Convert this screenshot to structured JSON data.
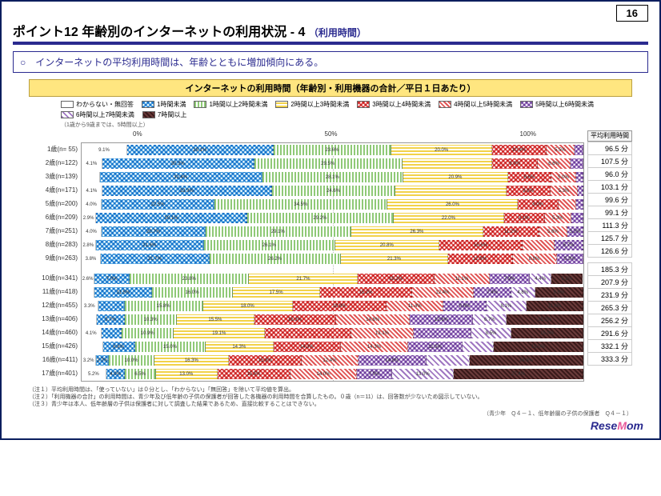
{
  "page_number": "16",
  "title_main": "ポイント12 年齢別のインターネットの利用状況 - 4",
  "title_sub": "（利用時間）",
  "summary": "○　インターネットの平均利用時間は、年齢とともに増加傾向にある。",
  "chart_title": "インターネットの利用時間（年齢別・利用機器の合計／平日１日あたり）",
  "avg_header": "平均利用時間",
  "legend_note": "（1歳から9歳までは、5時間以上）",
  "axis": {
    "t0": "0%",
    "t50": "50%",
    "t100": "100%"
  },
  "categories": [
    {
      "key": "blank",
      "label": "わからない・無回答",
      "class": "p-blank"
    },
    {
      "key": "lt1",
      "label": "1時間未満",
      "class": "p-blue-x"
    },
    {
      "key": "h1_2",
      "label": "1時間以上2時間未満",
      "class": "p-green-v"
    },
    {
      "key": "h2_3",
      "label": "2時間以上3時間未満",
      "class": "p-yellow-h"
    },
    {
      "key": "h3_4",
      "label": "3時間以上4時間未満",
      "class": "p-red-x"
    },
    {
      "key": "h4_5",
      "label": "4時間以上5時間未満",
      "class": "p-red-d"
    },
    {
      "key": "h5_6",
      "label": "5時間以上6時間未満",
      "class": "p-purple-x"
    },
    {
      "key": "h6_7",
      "label": "6時間以上7時間未満",
      "class": "p-purple-d"
    },
    {
      "key": "h7p",
      "label": "7時間以上",
      "class": "p-dark"
    }
  ],
  "rows": [
    {
      "label": "1歳(n= 55)",
      "avg": "96.5 分",
      "seg": [
        {
          "k": "blank",
          "v": 9.1,
          "t": "9.1%"
        },
        {
          "k": "lt1",
          "v": 29.1,
          "t": "29.1%"
        },
        {
          "k": "h1_2",
          "v": 23.6,
          "t": "23.6%"
        },
        {
          "k": "h2_3",
          "v": 20.0,
          "t": "20.0%"
        },
        {
          "k": "h3_4",
          "v": 10.9,
          "t": "10.9%"
        },
        {
          "k": "h4_5",
          "v": 5.5,
          "t": "5.5%"
        },
        {
          "k": "h5_6",
          "v": 1.8,
          "t": ""
        }
      ]
    },
    {
      "label": "2歳(n=122)",
      "avg": "107.5 分",
      "seg": [
        {
          "k": "blank",
          "v": 4.1,
          "t": "4.1%"
        },
        {
          "k": "lt1",
          "v": 30.3,
          "t": "30.3%"
        },
        {
          "k": "h1_2",
          "v": 29.5,
          "t": "29.5%"
        },
        {
          "k": "h2_3",
          "v": 18.0,
          "t": ""
        },
        {
          "k": "h3_4",
          "v": 9.0,
          "t": "9.0%"
        },
        {
          "k": "h4_5",
          "v": 6.6,
          "t": "6.6%"
        },
        {
          "k": "h5_6",
          "v": 2.5,
          "t": ""
        }
      ]
    },
    {
      "label": "3歳(n=139)",
      "avg": "96.0 分",
      "seg": [
        {
          "k": "blank",
          "v": 3.6,
          "t": ""
        },
        {
          "k": "lt1",
          "v": 32.4,
          "t": "32.4%"
        },
        {
          "k": "h1_2",
          "v": 28.1,
          "t": "28.1%"
        },
        {
          "k": "h2_3",
          "v": 20.9,
          "t": "20.9%"
        },
        {
          "k": "h3_4",
          "v": 8.6,
          "t": "8.6%"
        },
        {
          "k": "h4_5",
          "v": 5.0,
          "t": "5.0%"
        },
        {
          "k": "h5_6",
          "v": 1.4,
          "t": ""
        }
      ]
    },
    {
      "label": "4歳(n=171)",
      "avg": "103.1 分",
      "seg": [
        {
          "k": "blank",
          "v": 4.1,
          "t": "4.1%"
        },
        {
          "k": "lt1",
          "v": 33.9,
          "t": "33.9%"
        },
        {
          "k": "h1_2",
          "v": 24.6,
          "t": "24.6%"
        },
        {
          "k": "h2_3",
          "v": 22.2,
          "t": ""
        },
        {
          "k": "h3_4",
          "v": 8.8,
          "t": "8.8%"
        },
        {
          "k": "h4_5",
          "v": 5.3,
          "t": "5.3%"
        },
        {
          "k": "h5_6",
          "v": 1.2,
          "t": ""
        }
      ]
    },
    {
      "label": "5歳(n=200)",
      "avg": "99.6 分",
      "seg": [
        {
          "k": "blank",
          "v": 4.0,
          "t": "4.0%"
        },
        {
          "k": "lt1",
          "v": 22.5,
          "t": "22.5%"
        },
        {
          "k": "h1_2",
          "v": 34.5,
          "t": "34.5%"
        },
        {
          "k": "h2_3",
          "v": 26.0,
          "t": "26.0%"
        },
        {
          "k": "h3_4",
          "v": 8.0,
          "t": "8.0%"
        },
        {
          "k": "h4_5",
          "v": 3.5,
          "t": ""
        },
        {
          "k": "h5_6",
          "v": 1.5,
          "t": ""
        }
      ]
    },
    {
      "label": "6歳(n=209)",
      "avg": "99.1 分",
      "seg": [
        {
          "k": "blank",
          "v": 2.9,
          "t": "2.9%"
        },
        {
          "k": "lt1",
          "v": 30.1,
          "t": "30.1%"
        },
        {
          "k": "h1_2",
          "v": 29.2,
          "t": "29.2%"
        },
        {
          "k": "h2_3",
          "v": 22.0,
          "t": "22.0%"
        },
        {
          "k": "h3_4",
          "v": 8.1,
          "t": "8.1%"
        },
        {
          "k": "h4_5",
          "v": 5.3,
          "t": "5.3%"
        },
        {
          "k": "h5_6",
          "v": 2.4,
          "t": ""
        }
      ]
    },
    {
      "label": "7歳(n=251)",
      "avg": "111.3 分",
      "seg": [
        {
          "k": "blank",
          "v": 4.0,
          "t": "4.0%"
        },
        {
          "k": "lt1",
          "v": 20.7,
          "t": "20.7%"
        },
        {
          "k": "h1_2",
          "v": 29.1,
          "t": "29.1%"
        },
        {
          "k": "h2_3",
          "v": 26.3,
          "t": "26.3%"
        },
        {
          "k": "h3_4",
          "v": 11.2,
          "t": "11.2%"
        },
        {
          "k": "h4_5",
          "v": 5.6,
          "t": "5.6%"
        },
        {
          "k": "h5_6",
          "v": 3.2,
          "t": "3.2%"
        }
      ]
    },
    {
      "label": "8歳(n=283)",
      "avg": "125.7 分",
      "seg": [
        {
          "k": "blank",
          "v": 2.8,
          "t": "2.8%"
        },
        {
          "k": "lt1",
          "v": 21.6,
          "t": "21.6%"
        },
        {
          "k": "h1_2",
          "v": 26.1,
          "t": "26.1%"
        },
        {
          "k": "h2_3",
          "v": 20.8,
          "t": "20.8%"
        },
        {
          "k": "h3_4",
          "v": 16.6,
          "t": "16.6%"
        },
        {
          "k": "h4_5",
          "v": 6.4,
          "t": ""
        },
        {
          "k": "h5_6",
          "v": 5.7,
          "t": "5.7%"
        }
      ]
    },
    {
      "label": "9歳(n=263)",
      "avg": "126.6 分",
      "seg": [
        {
          "k": "blank",
          "v": 3.8,
          "t": "3.8%"
        },
        {
          "k": "lt1",
          "v": 21.7,
          "t": "21.7%"
        },
        {
          "k": "h1_2",
          "v": 26.2,
          "t": "26.2%"
        },
        {
          "k": "h2_3",
          "v": 21.3,
          "t": "21.3%"
        },
        {
          "k": "h3_4",
          "v": 12.9,
          "t": "12.9%"
        },
        {
          "k": "h4_5",
          "v": 8.8,
          "t": "8.8%"
        },
        {
          "k": "h5_6",
          "v": 5.3,
          "t": "5.3%"
        }
      ]
    },
    {
      "gap": true
    },
    {
      "label": "10歳(n=341)",
      "avg": "185.3 分",
      "seg": [
        {
          "k": "blank",
          "v": 2.6,
          "t": "2.6%"
        },
        {
          "k": "lt1",
          "v": 7.0,
          "t": "7.0%"
        },
        {
          "k": "h1_2",
          "v": 23.8,
          "t": "23.8%"
        },
        {
          "k": "h2_3",
          "v": 21.7,
          "t": "21.7%"
        },
        {
          "k": "h3_4",
          "v": 15.2,
          "t": "15.2%"
        },
        {
          "k": "h4_5",
          "v": 11.1,
          "t": "11.1%"
        },
        {
          "k": "h5_6",
          "v": 7.9,
          "t": "7.9%"
        },
        {
          "k": "h6_7",
          "v": 4.4,
          "t": "4.4%"
        },
        {
          "k": "h7p",
          "v": 6.2,
          "t": "6.2%"
        }
      ]
    },
    {
      "label": "11歳(n=418)",
      "avg": "207.9 分",
      "seg": [
        {
          "k": "blank",
          "v": 2.6,
          "t": ""
        },
        {
          "k": "lt1",
          "v": 11.5,
          "t": "11.5%"
        },
        {
          "k": "h1_2",
          "v": 16.0,
          "t": "16.0%"
        },
        {
          "k": "h2_3",
          "v": 17.5,
          "t": "17.5%"
        },
        {
          "k": "h3_4",
          "v": 18.2,
          "t": "18.2%"
        },
        {
          "k": "h4_5",
          "v": 12.4,
          "t": "12.4%"
        },
        {
          "k": "h5_6",
          "v": 7.4,
          "t": "7.4%"
        },
        {
          "k": "h6_7",
          "v": 4.8,
          "t": "4.8%"
        },
        {
          "k": "h7p",
          "v": 9.6,
          "t": "9.6%"
        }
      ]
    },
    {
      "label": "12歳(n=455)",
      "avg": "231.9 分",
      "seg": [
        {
          "k": "blank",
          "v": 3.3,
          "t": "3.3%"
        },
        {
          "k": "lt1",
          "v": 5.3,
          "t": ""
        },
        {
          "k": "h1_2",
          "v": 15.8,
          "t": "15.8%"
        },
        {
          "k": "h2_3",
          "v": 18.0,
          "t": "18.0%"
        },
        {
          "k": "h3_4",
          "v": 18.9,
          "t": "18.9%"
        },
        {
          "k": "h4_5",
          "v": 11.4,
          "t": "11.4%"
        },
        {
          "k": "h5_6",
          "v": 8.6,
          "t": "8.6%"
        },
        {
          "k": "h6_7",
          "v": 8.1,
          "t": "8.1%"
        },
        {
          "k": "h7p",
          "v": 11.4,
          "t": "11.4%"
        }
      ]
    },
    {
      "label": "13歳(n=406)",
      "avg": "265.3 分",
      "seg": [
        {
          "k": "blank",
          "v": 3.0,
          "t": ""
        },
        {
          "k": "lt1",
          "v": 5.7,
          "t": "5.7%"
        },
        {
          "k": "h1_2",
          "v": 10.3,
          "t": "10.3%"
        },
        {
          "k": "h2_3",
          "v": 15.5,
          "t": "15.5%"
        },
        {
          "k": "h3_4",
          "v": 16.3,
          "t": "16.3%"
        },
        {
          "k": "h4_5",
          "v": 14.8,
          "t": "14.8%"
        },
        {
          "k": "h5_6",
          "v": 12.6,
          "t": "12.6%"
        },
        {
          "k": "h6_7",
          "v": 6.7,
          "t": "6.7%"
        },
        {
          "k": "h7p",
          "v": 15.3,
          "t": "15.3%"
        }
      ]
    },
    {
      "label": "14歳(n=460)",
      "avg": "256.2 分",
      "seg": [
        {
          "k": "blank",
          "v": 4.1,
          "t": "4.1%"
        },
        {
          "k": "lt1",
          "v": 4.3,
          "t": ""
        },
        {
          "k": "h1_2",
          "v": 10.9,
          "t": "10.9%"
        },
        {
          "k": "h2_3",
          "v": 19.1,
          "t": "19.1%"
        },
        {
          "k": "h3_4",
          "v": 18.0,
          "t": ""
        },
        {
          "k": "h4_5",
          "v": 13.1,
          "t": "13.1%"
        },
        {
          "k": "h5_6",
          "v": 12.0,
          "t": ""
        },
        {
          "k": "h6_7",
          "v": 8.5,
          "t": "8.5%"
        },
        {
          "k": "h7p",
          "v": 15.0,
          "t": "15.0%"
        }
      ]
    },
    {
      "label": "15歳(n=426)",
      "avg": "291.6 分",
      "seg": [
        {
          "k": "blank",
          "v": 4.5,
          "t": ""
        },
        {
          "k": "lt1",
          "v": 6.8,
          "t": "6.8%"
        },
        {
          "k": "h1_2",
          "v": 15.0,
          "t": "15.0%"
        },
        {
          "k": "h2_3",
          "v": 14.3,
          "t": "14.3%"
        },
        {
          "k": "h3_4",
          "v": 14.3,
          "t": "14.3%"
        },
        {
          "k": "h4_5",
          "v": 14.3,
          "t": "14.3%"
        },
        {
          "k": "h5_6",
          "v": 11.5,
          "t": "11.5%"
        },
        {
          "k": "h6_7",
          "v": 6.6,
          "t": ""
        },
        {
          "k": "h7p",
          "v": 19.0,
          "t": "19.0%"
        }
      ]
    },
    {
      "label": "16歳(n=411)",
      "avg": "332.1 分",
      "seg": [
        {
          "k": "blank",
          "v": 3.2,
          "t": "3.2%"
        },
        {
          "k": "lt1",
          "v": 2.7,
          "t": "2.7%"
        },
        {
          "k": "h1_2",
          "v": 10.0,
          "t": "10.0%"
        },
        {
          "k": "h2_3",
          "v": 16.3,
          "t": "16.3%"
        },
        {
          "k": "h3_4",
          "v": 15.8,
          "t": "15.8%"
        },
        {
          "k": "h4_5",
          "v": 12.4,
          "t": "12.4%"
        },
        {
          "k": "h5_6",
          "v": 14.8,
          "t": "14.8%"
        },
        {
          "k": "h6_7",
          "v": 9.5,
          "t": ""
        },
        {
          "k": "h7p",
          "v": 24.8,
          "t": "24.8%"
        }
      ]
    },
    {
      "label": "17歳(n=401)",
      "avg": "333.3 分",
      "seg": [
        {
          "k": "blank",
          "v": 5.2,
          "t": "5.2%"
        },
        {
          "k": "lt1",
          "v": 4.0,
          "t": "4.0%"
        },
        {
          "k": "h1_2",
          "v": 6.5,
          "t": "6.5%"
        },
        {
          "k": "h2_3",
          "v": 13.0,
          "t": "13.0%"
        },
        {
          "k": "h3_4",
          "v": 15.5,
          "t": "15.5%"
        },
        {
          "k": "h4_5",
          "v": 14.0,
          "t": "14.0%"
        },
        {
          "k": "h5_6",
          "v": 7.5,
          "t": "7.5%"
        },
        {
          "k": "h6_7",
          "v": 13.0,
          "t": "13.0%"
        },
        {
          "k": "h7p",
          "v": 27.4,
          "t": "27.4%"
        }
      ]
    }
  ],
  "notes": [
    "（注１）平均利用時間は、「使っていない」は０分とし、「わからない」「無回答」を除いて平均値を算出。",
    "（注２）「利用機器の合計」の利用時間は、青少年及び低年齢の子供の保護者が回答した各機器の利用時間を合算したもの。０歳（n＝11）は、回答数が少ないため図示していない。",
    "（注３）青少年は本人、低年齢層の子供は保護者に対して調査した結果であるため、直接比較することはできない。"
  ],
  "source": "（青少年　Q４－１、低年齢層の子供の保護者　Q４－１）",
  "brand_a": "Rese",
  "brand_b": "M",
  "brand_c": "om",
  "colors": {
    "border": "#0a1e5e",
    "accent": "#2a2a8f",
    "yellow": "#ffe680"
  }
}
